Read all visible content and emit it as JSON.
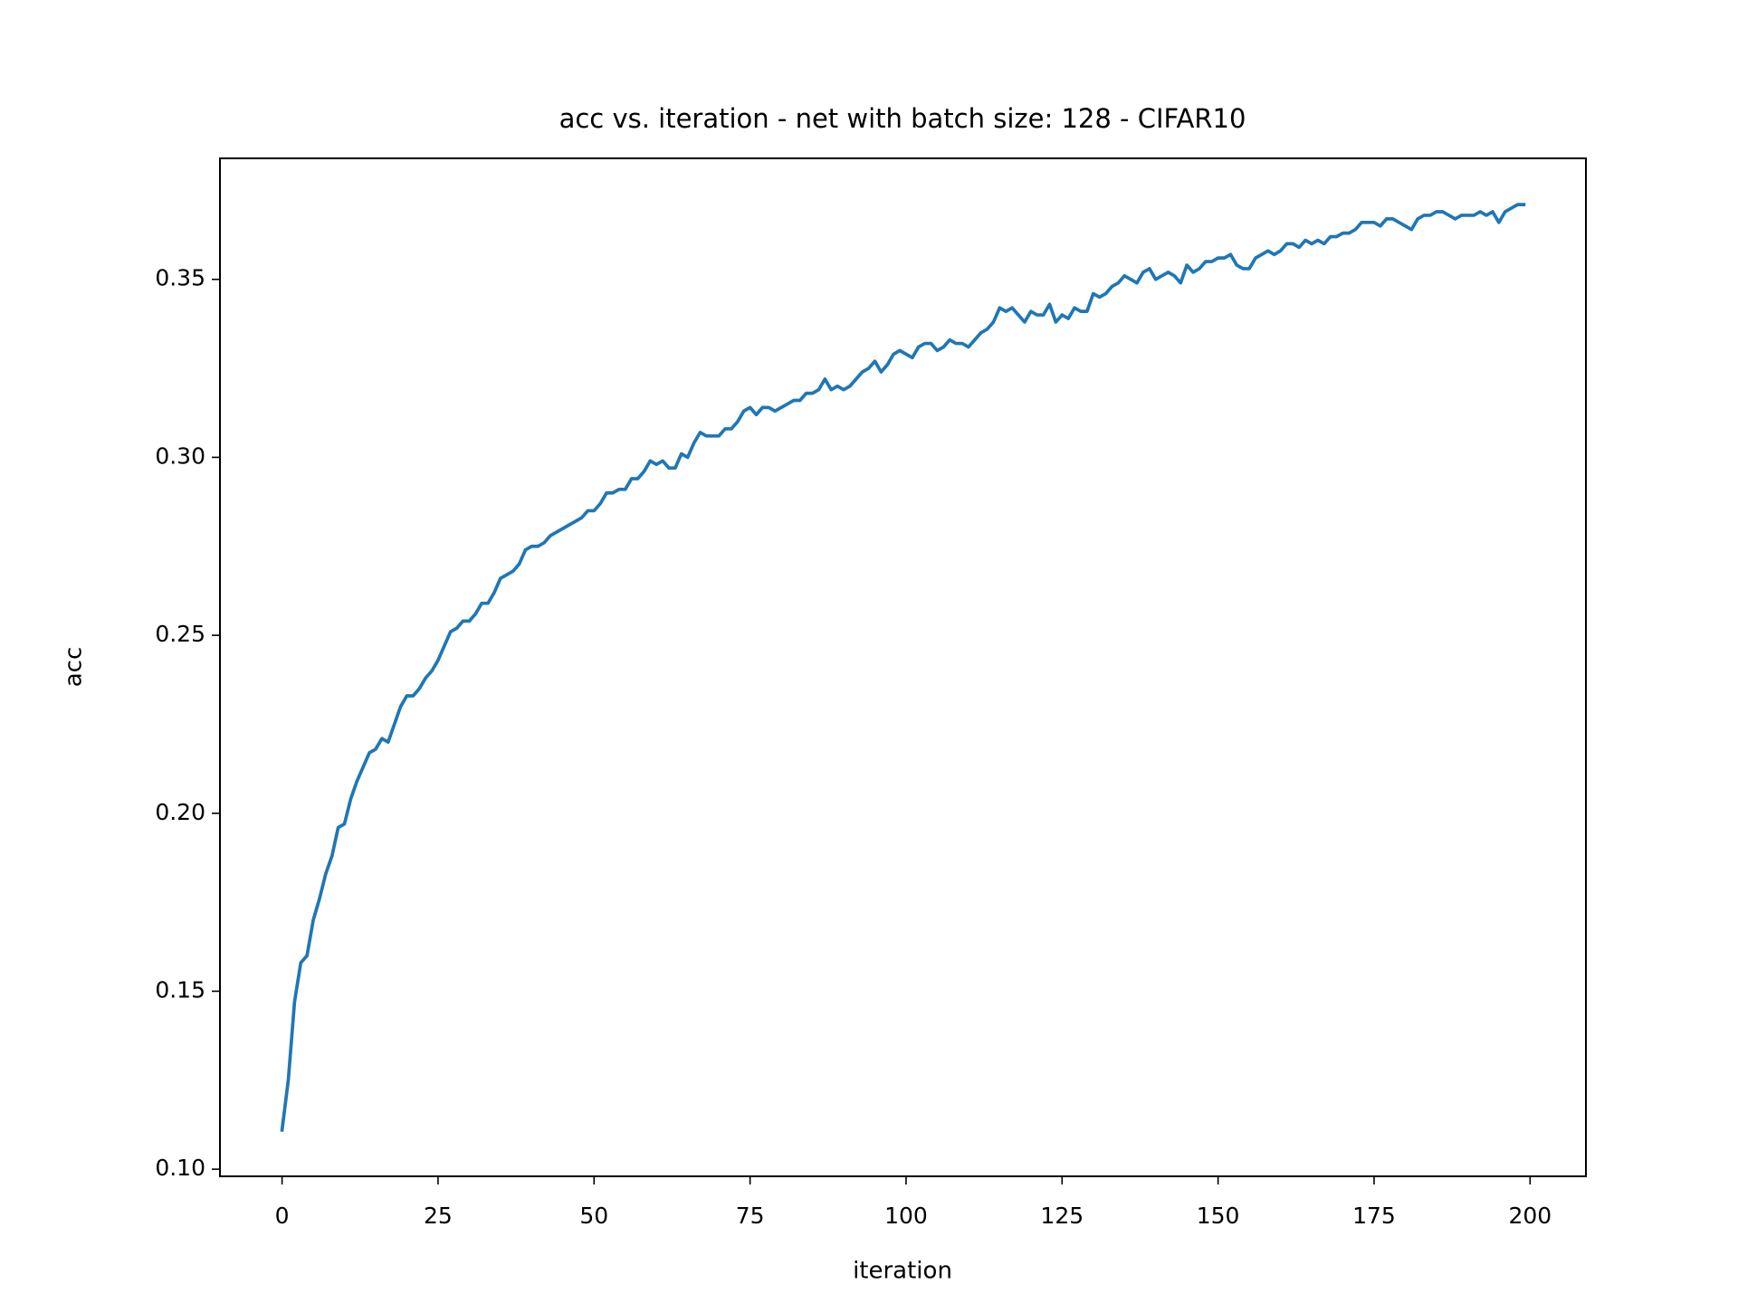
{
  "chart_data": {
    "type": "line",
    "title": "acc vs. iteration - net with batch size: 128 - CIFAR10",
    "xlabel": "iteration",
    "ylabel": "acc",
    "color": "#1f77b4",
    "x": [
      0,
      1,
      2,
      3,
      4,
      5,
      6,
      7,
      8,
      9,
      10,
      11,
      12,
      13,
      14,
      15,
      16,
      17,
      18,
      19,
      20,
      21,
      22,
      23,
      24,
      25,
      26,
      27,
      28,
      29,
      30,
      31,
      32,
      33,
      34,
      35,
      36,
      37,
      38,
      39,
      40,
      41,
      42,
      43,
      44,
      45,
      46,
      47,
      48,
      49,
      50,
      51,
      52,
      53,
      54,
      55,
      56,
      57,
      58,
      59,
      60,
      61,
      62,
      63,
      64,
      65,
      66,
      67,
      68,
      69,
      70,
      71,
      72,
      73,
      74,
      75,
      76,
      77,
      78,
      79,
      80,
      81,
      82,
      83,
      84,
      85,
      86,
      87,
      88,
      89,
      90,
      91,
      92,
      93,
      94,
      95,
      96,
      97,
      98,
      99,
      100,
      101,
      102,
      103,
      104,
      105,
      106,
      107,
      108,
      109,
      110,
      111,
      112,
      113,
      114,
      115,
      116,
      117,
      118,
      119,
      120,
      121,
      122,
      123,
      124,
      125,
      126,
      127,
      128,
      129,
      130,
      131,
      132,
      133,
      134,
      135,
      136,
      137,
      138,
      139,
      140,
      141,
      142,
      143,
      144,
      145,
      146,
      147,
      148,
      149,
      150,
      151,
      152,
      153,
      154,
      155,
      156,
      157,
      158,
      159,
      160,
      161,
      162,
      163,
      164,
      165,
      166,
      167,
      168,
      169,
      170,
      171,
      172,
      173,
      174,
      175,
      176,
      177,
      178,
      179,
      180,
      181,
      182,
      183,
      184,
      185,
      186,
      187,
      188,
      189,
      190,
      191,
      192,
      193,
      194,
      195,
      196,
      197,
      198,
      199
    ],
    "values": [
      0.111,
      0.125,
      0.147,
      0.158,
      0.16,
      0.17,
      0.176,
      0.183,
      0.188,
      0.196,
      0.197,
      0.204,
      0.209,
      0.213,
      0.217,
      0.218,
      0.221,
      0.22,
      0.225,
      0.23,
      0.233,
      0.233,
      0.235,
      0.238,
      0.24,
      0.243,
      0.247,
      0.251,
      0.252,
      0.254,
      0.254,
      0.256,
      0.259,
      0.259,
      0.262,
      0.266,
      0.267,
      0.268,
      0.27,
      0.274,
      0.275,
      0.275,
      0.276,
      0.278,
      0.279,
      0.28,
      0.281,
      0.282,
      0.283,
      0.285,
      0.285,
      0.287,
      0.29,
      0.29,
      0.291,
      0.291,
      0.294,
      0.294,
      0.296,
      0.299,
      0.298,
      0.299,
      0.297,
      0.297,
      0.301,
      0.3,
      0.304,
      0.307,
      0.306,
      0.306,
      0.306,
      0.308,
      0.308,
      0.31,
      0.313,
      0.314,
      0.312,
      0.314,
      0.314,
      0.313,
      0.314,
      0.315,
      0.316,
      0.316,
      0.318,
      0.318,
      0.319,
      0.322,
      0.319,
      0.32,
      0.319,
      0.32,
      0.322,
      0.324,
      0.325,
      0.327,
      0.324,
      0.326,
      0.329,
      0.33,
      0.329,
      0.328,
      0.331,
      0.332,
      0.332,
      0.33,
      0.331,
      0.333,
      0.332,
      0.332,
      0.331,
      0.333,
      0.335,
      0.336,
      0.338,
      0.342,
      0.341,
      0.342,
      0.34,
      0.338,
      0.341,
      0.34,
      0.34,
      0.343,
      0.338,
      0.34,
      0.339,
      0.342,
      0.341,
      0.341,
      0.346,
      0.345,
      0.346,
      0.348,
      0.349,
      0.351,
      0.35,
      0.349,
      0.352,
      0.353,
      0.35,
      0.351,
      0.352,
      0.351,
      0.349,
      0.354,
      0.352,
      0.353,
      0.355,
      0.355,
      0.356,
      0.356,
      0.357,
      0.354,
      0.353,
      0.353,
      0.356,
      0.357,
      0.358,
      0.357,
      0.358,
      0.36,
      0.36,
      0.359,
      0.361,
      0.36,
      0.361,
      0.36,
      0.362,
      0.362,
      0.363,
      0.363,
      0.364,
      0.366,
      0.366,
      0.366,
      0.365,
      0.367,
      0.367,
      0.366,
      0.365,
      0.364,
      0.367,
      0.368,
      0.368,
      0.369,
      0.369,
      0.368,
      0.367,
      0.368,
      0.368,
      0.368,
      0.369,
      0.368,
      0.369,
      0.366,
      0.369,
      0.37,
      0.371,
      0.371
    ],
    "xlim": [
      -9.95,
      208.95
    ],
    "xticks": [
      0,
      25,
      50,
      75,
      100,
      125,
      150,
      175,
      200
    ],
    "ylim": [
      0.098,
      0.384
    ],
    "yticks": [
      {
        "value": 0.1,
        "label": "0.10"
      },
      {
        "value": 0.15,
        "label": "0.15"
      },
      {
        "value": 0.2,
        "label": "0.20"
      },
      {
        "value": 0.25,
        "label": "0.25"
      },
      {
        "value": 0.3,
        "label": "0.30"
      },
      {
        "value": 0.35,
        "label": "0.35"
      }
    ],
    "grid": false
  }
}
